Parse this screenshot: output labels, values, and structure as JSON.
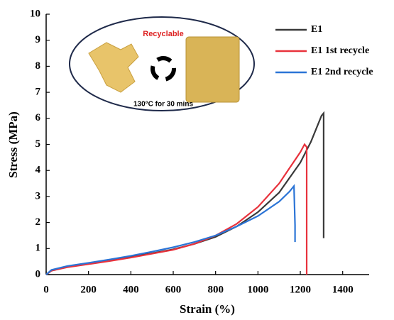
{
  "chart_data": {
    "type": "line",
    "x_label": "Strain (%)",
    "y_label": "Stress (MPa)",
    "xlim": [
      0,
      1525
    ],
    "xticks": [
      0,
      200,
      400,
      600,
      800,
      1000,
      1200,
      1400
    ],
    "ylim": [
      0,
      10
    ],
    "yticks": [
      0,
      1,
      2,
      3,
      4,
      5,
      6,
      7,
      8,
      9,
      10
    ],
    "inset_labels": [
      "Recyclable",
      "130°C for 30 mins"
    ],
    "legend": "top-right",
    "series": [
      {
        "name": "E1",
        "color": "#3a3a3a",
        "x": [
          0,
          25,
          100,
          200,
          300,
          400,
          500,
          600,
          700,
          800,
          900,
          1000,
          1100,
          1200,
          1250,
          1300,
          1310,
          1310
        ],
        "values": [
          0,
          0.15,
          0.3,
          0.42,
          0.55,
          0.68,
          0.82,
          0.97,
          1.18,
          1.45,
          1.85,
          2.4,
          3.15,
          4.3,
          5.1,
          6.1,
          6.2,
          1.4
        ]
      },
      {
        "name": "E1 1st recycle",
        "color": "#e8323c",
        "x": [
          0,
          25,
          100,
          200,
          300,
          400,
          500,
          600,
          700,
          800,
          900,
          1000,
          1100,
          1150,
          1200,
          1220,
          1230,
          1230
        ],
        "values": [
          0,
          0.15,
          0.28,
          0.4,
          0.52,
          0.65,
          0.8,
          0.95,
          1.18,
          1.5,
          1.95,
          2.6,
          3.5,
          4.1,
          4.7,
          5.0,
          4.9,
          0
        ]
      },
      {
        "name": "E1 2nd recycle",
        "color": "#2b74d6",
        "x": [
          0,
          25,
          100,
          200,
          300,
          400,
          500,
          600,
          700,
          800,
          900,
          1000,
          1100,
          1150,
          1170,
          1175,
          1175
        ],
        "values": [
          0,
          0.18,
          0.33,
          0.45,
          0.58,
          0.72,
          0.88,
          1.05,
          1.25,
          1.5,
          1.85,
          2.25,
          2.8,
          3.2,
          3.4,
          1.9,
          1.25
        ]
      }
    ]
  }
}
